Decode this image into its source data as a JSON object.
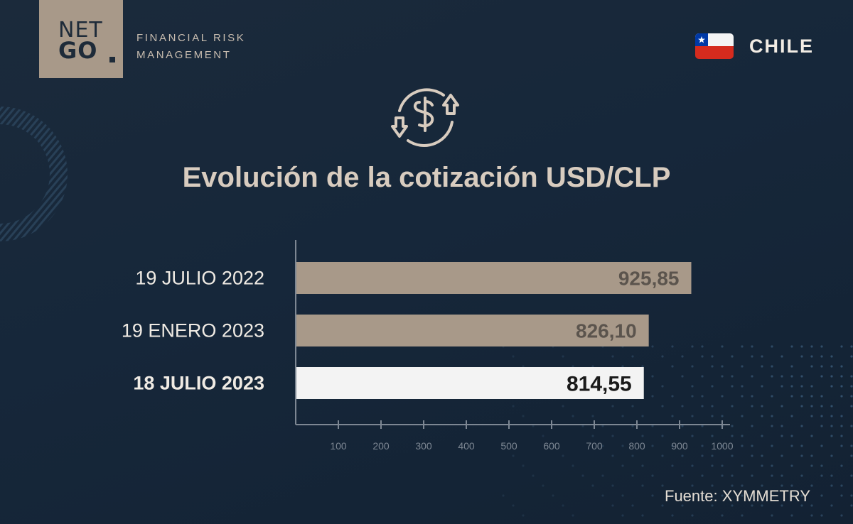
{
  "brand": {
    "logo_line1": "NET",
    "logo_line2": "GO",
    "tagline_line1": "FINANCIAL RISK",
    "tagline_line2": "MANAGEMENT"
  },
  "country": {
    "name": "CHILE",
    "flag_icon": "chile-flag-icon"
  },
  "icon": "currency-exchange-icon",
  "chart_data": {
    "type": "bar",
    "orientation": "horizontal",
    "title": "Evolución de la cotización USD/CLP",
    "categories": [
      "19 JULIO 2022",
      "19 ENERO 2023",
      "18 JULIO 2023"
    ],
    "values": [
      925.85,
      826.1,
      814.55
    ],
    "value_labels": [
      "925,85",
      "826,10",
      "814,55"
    ],
    "highlighted": [
      false,
      false,
      true
    ],
    "xlim": [
      0,
      1000
    ],
    "x_ticks": [
      100,
      200,
      300,
      400,
      500,
      600,
      700,
      800,
      900,
      1000
    ],
    "grid": false,
    "legend": "none",
    "colors": {
      "bar": "#a89989",
      "bar_highlight": "#f3f3f3",
      "label": "#5b544d",
      "label_highlight": "#1a1a1a",
      "axis": "#7d8793"
    }
  },
  "source": "Fuente: XYMMETRY"
}
